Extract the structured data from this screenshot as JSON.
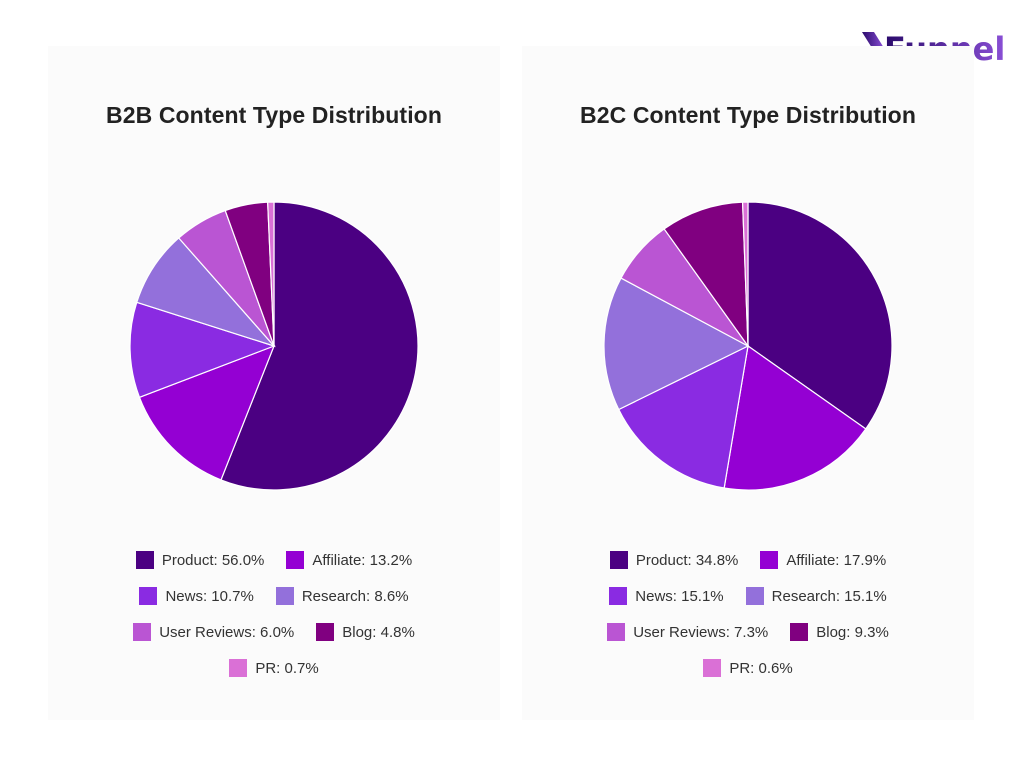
{
  "brand": {
    "name": "Funnel"
  },
  "colors": {
    "Product": "#4b0082",
    "Affiliate": "#9400d3",
    "News": "#8a2be2",
    "Research": "#9370db",
    "User Reviews": "#ba55d3",
    "Blog": "#800080",
    "PR": "#da70d6"
  },
  "chart_data": [
    {
      "type": "pie",
      "title": "B2B Content Type Distribution",
      "legend_position": "bottom",
      "slices": [
        {
          "label": "Product",
          "value": 56.0,
          "legend": "Product: 56.0%"
        },
        {
          "label": "Affiliate",
          "value": 13.2,
          "legend": "Affiliate: 13.2%"
        },
        {
          "label": "News",
          "value": 10.7,
          "legend": "News: 10.7%"
        },
        {
          "label": "Research",
          "value": 8.6,
          "legend": "Research: 8.6%"
        },
        {
          "label": "User Reviews",
          "value": 6.0,
          "legend": "User Reviews: 6.0%"
        },
        {
          "label": "Blog",
          "value": 4.8,
          "legend": "Blog: 4.8%"
        },
        {
          "label": "PR",
          "value": 0.7,
          "legend": "PR: 0.7%"
        }
      ]
    },
    {
      "type": "pie",
      "title": "B2C Content Type Distribution",
      "legend_position": "bottom",
      "slices": [
        {
          "label": "Product",
          "value": 34.8,
          "legend": "Product: 34.8%"
        },
        {
          "label": "Affiliate",
          "value": 17.9,
          "legend": "Affiliate: 17.9%"
        },
        {
          "label": "News",
          "value": 15.1,
          "legend": "News: 15.1%"
        },
        {
          "label": "Research",
          "value": 15.1,
          "legend": "Research: 15.1%"
        },
        {
          "label": "User Reviews",
          "value": 7.3,
          "legend": "User Reviews: 7.3%"
        },
        {
          "label": "Blog",
          "value": 9.3,
          "legend": "Blog: 9.3%"
        },
        {
          "label": "PR",
          "value": 0.6,
          "legend": "PR: 0.6%"
        }
      ]
    }
  ]
}
